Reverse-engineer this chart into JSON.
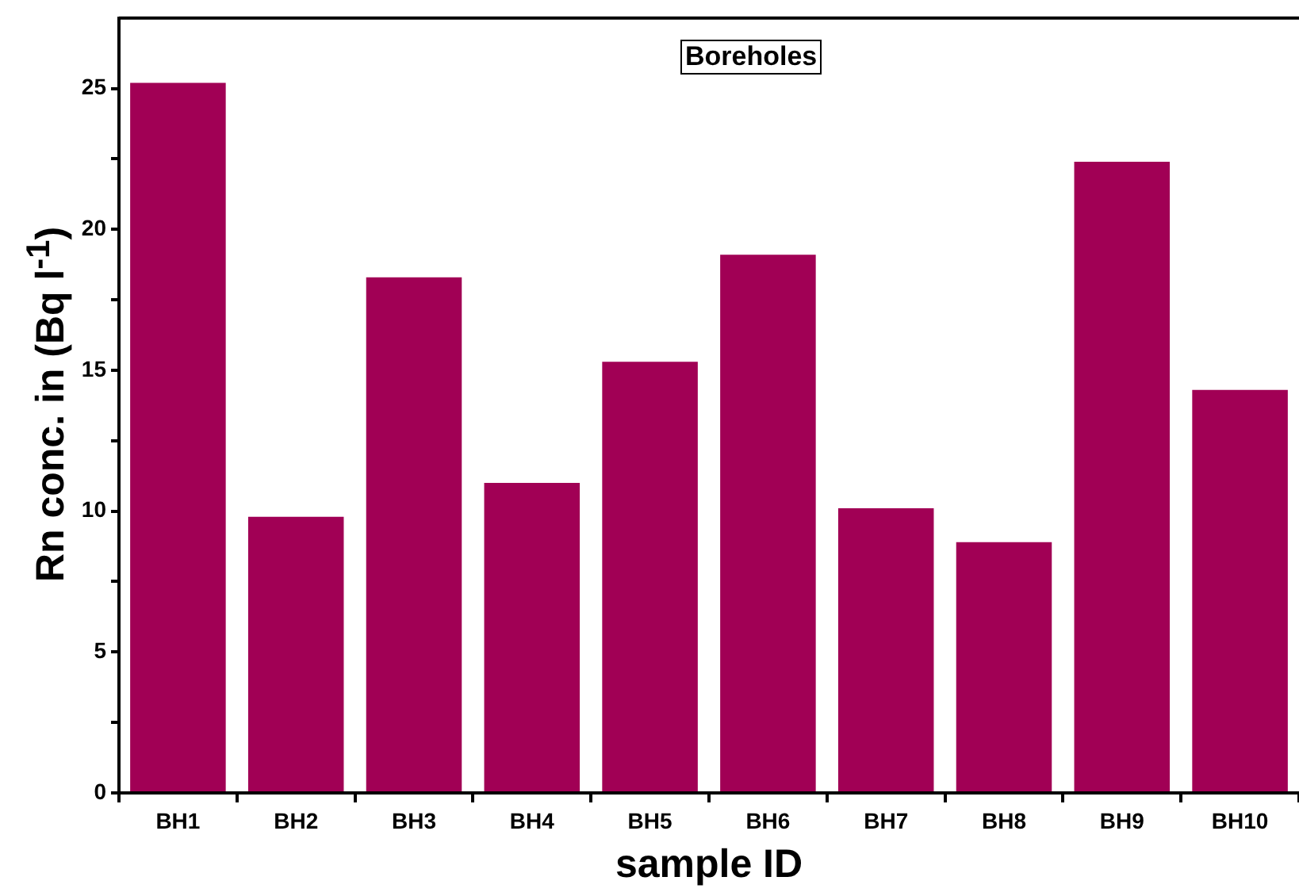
{
  "chart_data": {
    "type": "bar",
    "title": "Boreholes",
    "xlabel": "sample ID",
    "ylabel": "Rn conc. in  (Bq l$^{-1}$)",
    "categories": [
      "BH1",
      "BH2",
      "BH3",
      "BH4",
      "BH5",
      "BH6",
      "BH7",
      "BH8",
      "BH9",
      "BH10"
    ],
    "values": [
      25.2,
      9.8,
      18.3,
      11.0,
      15.3,
      19.1,
      10.1,
      8.9,
      22.4,
      14.3
    ],
    "color": "#a10055",
    "ylim": [
      0,
      27.5
    ],
    "yticks": [
      0,
      {
        "value": 2.5,
        "label": null
      },
      5,
      {
        "value": 7.5,
        "label": null
      },
      10,
      {
        "value": 12.5,
        "label": null
      },
      15,
      {
        "value": 17.5,
        "label": null
      },
      20,
      {
        "value": 22.5,
        "label": null
      },
      25
    ],
    "grid": false,
    "legend": false
  }
}
